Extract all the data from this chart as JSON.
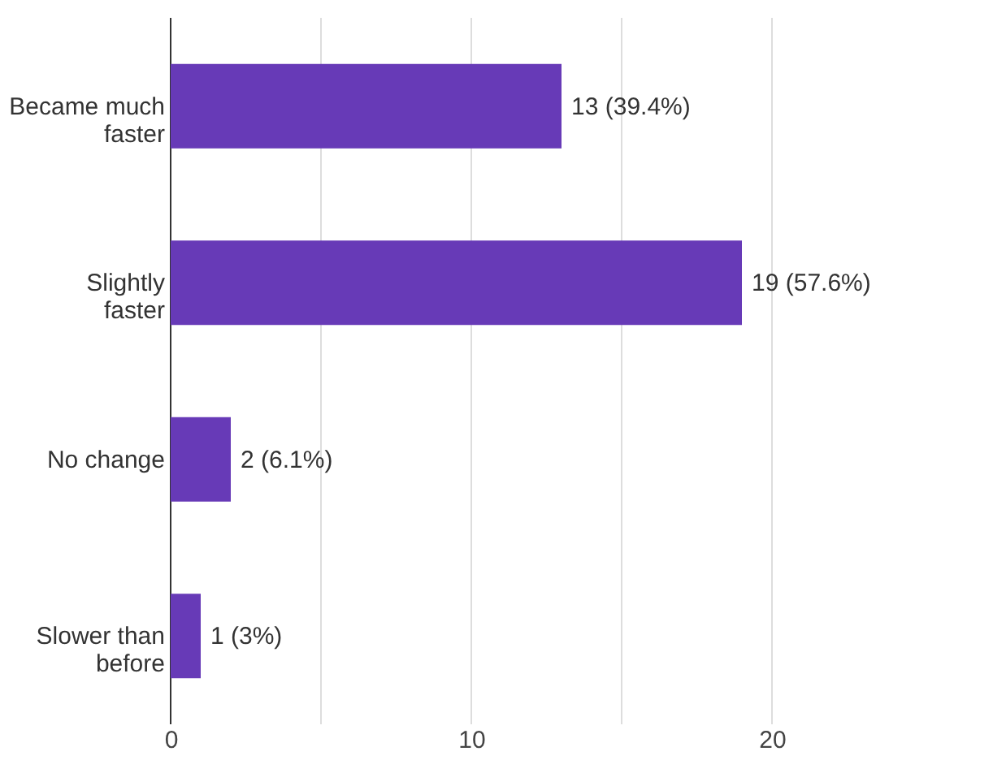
{
  "chart_data": {
    "type": "bar",
    "orientation": "horizontal",
    "categories": [
      "Became much faster",
      "Slightly faster",
      "No change",
      "Slower than before"
    ],
    "values": [
      13,
      19,
      2,
      1
    ],
    "color": "#673ab7",
    "value_labels": [
      "13 (39.4%)",
      "19 (57.6%)",
      "2 (6.1%)",
      "1 (3%)"
    ],
    "xlim": [
      0,
      20
    ],
    "xticks": [
      0,
      10,
      20
    ],
    "grid": "x"
  }
}
